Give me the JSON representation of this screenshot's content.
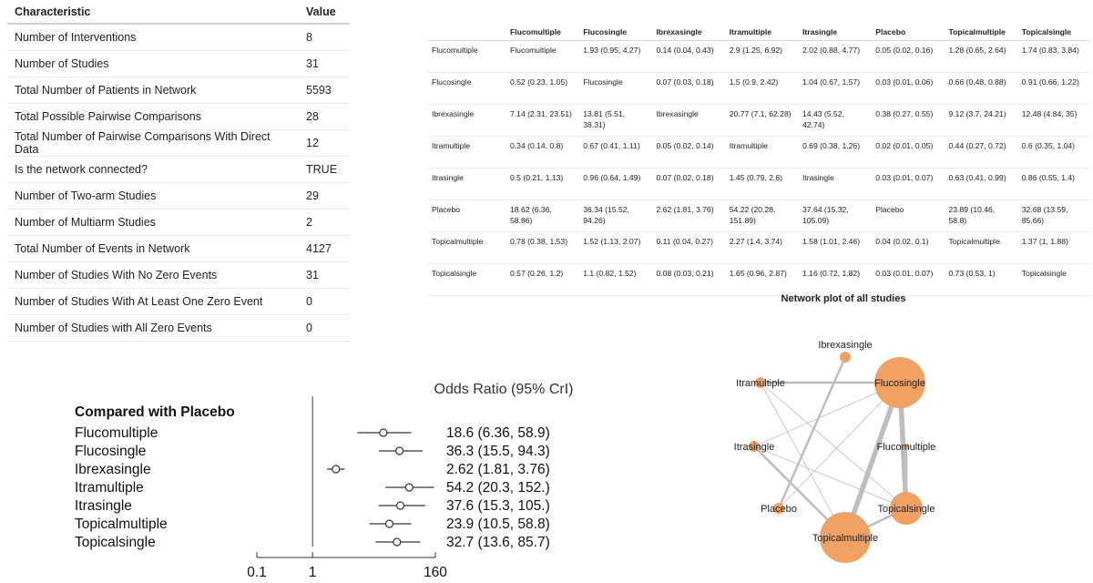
{
  "summary": {
    "headers": [
      "Characteristic",
      "Value"
    ],
    "rows": [
      [
        "Number of Interventions",
        "8"
      ],
      [
        "Number of Studies",
        "31"
      ],
      [
        "Total Number of Patients in Network",
        "5593"
      ],
      [
        "Total Possible Pairwise Comparisons",
        "28"
      ],
      [
        "Total Number of Pairwise Comparisons With Direct Data",
        "12"
      ],
      [
        "Is the network connected?",
        "TRUE"
      ],
      [
        "Number of Two-arm Studies",
        "29"
      ],
      [
        "Number of Multiarm Studies",
        "2"
      ],
      [
        "Total Number of Events in Network",
        "4127"
      ],
      [
        "Number of Studies With No Zero Events",
        "31"
      ],
      [
        "Number of Studies With At Least One Zero Event",
        "0"
      ],
      [
        "Number of Studies with All Zero Events",
        "0"
      ]
    ]
  },
  "league": {
    "headers": [
      "",
      "Flucomultiple",
      "Flucosingle",
      "Ibrexasingle",
      "Itramultiple",
      "Itrasingle",
      "Placebo",
      "Topicalmultiple",
      "Topicalsingle"
    ],
    "rows": [
      [
        "Flucomultiple",
        "Flucomultiple",
        "1.93 (0.95, 4.27)",
        "0.14 (0.04, 0.43)",
        "2.9 (1.25, 6.92)",
        "2.02 (0.88, 4.77)",
        "0.05 (0.02, 0.16)",
        "1.28 (0.65, 2.64)",
        "1.74 (0.83, 3.84)"
      ],
      [
        "Flucosingle",
        "0.52 (0.23, 1.05)",
        "Flucosingle",
        "0.07 (0.03, 0.18)",
        "1.5 (0.9, 2.42)",
        "1.04 (0.67, 1.57)",
        "0.03 (0.01, 0.06)",
        "0.66 (0.48, 0.88)",
        "0.91 (0.66, 1.22)"
      ],
      [
        "Ibrexasingle",
        "7.14 (2.31, 23.51)",
        "13.81 (5.51, 38.31)",
        "Ibrexasingle",
        "20.77 (7.1, 62.28)",
        "14.43 (5.52, 42.74)",
        "0.38 (0.27, 0.55)",
        "9.12 (3.7, 24.21)",
        "12.48 (4.84, 35)"
      ],
      [
        "Itramultiple",
        "0.34 (0.14, 0.8)",
        "0.67 (0.41, 1.11)",
        "0.05 (0.02, 0.14)",
        "Itramultiple",
        "0.69 (0.38, 1.26)",
        "0.02 (0.01, 0.05)",
        "0.44 (0.27, 0.72)",
        "0.6 (0.35, 1.04)"
      ],
      [
        "Itrasingle",
        "0.5 (0.21, 1.13)",
        "0.96 (0.64, 1.49)",
        "0.07 (0.02, 0.18)",
        "1.45 (0.79, 2.6)",
        "Itrasingle",
        "0.03 (0.01, 0.07)",
        "0.63 (0.41, 0.99)",
        "0.86 (0.55, 1.4)"
      ],
      [
        "Placebo",
        "18.62 (6.36, 58.86)",
        "36.34 (15.52, 94.26)",
        "2.62 (1.81, 3.76)",
        "54.22 (20.28, 151.89)",
        "37.64 (15.32, 105.09)",
        "Placebo",
        "23.89 (10.46, 58.8)",
        "32.68 (13.59, 85.66)"
      ],
      [
        "Topicalmultiple",
        "0.78 (0.38, 1.53)",
        "1.52 (1.13, 2.07)",
        "0.11 (0.04, 0.27)",
        "2.27 (1.4, 3.74)",
        "1.58 (1.01, 2.46)",
        "0.04 (0.02, 0.1)",
        "Topicalmultiple",
        "1.37 (1, 1.88)"
      ],
      [
        "Topicalsingle",
        "0.57 (0.26, 1.2)",
        "1.1 (0.82, 1.52)",
        "0.08 (0.03, 0.21)",
        "1.65 (0.96, 2.87)",
        "1.16 (0.72, 1.82)",
        "0.03 (0.01, 0.07)",
        "0.73 (0.53, 1)",
        "Topicalsingle"
      ]
    ]
  },
  "network": {
    "title": "Network plot of all studies",
    "node_color": "#f0a060",
    "edge_color": "#bdbdbd",
    "nodes": [
      {
        "name": "Ibrexasingle",
        "size": "small"
      },
      {
        "name": "Itramultiple",
        "size": "small"
      },
      {
        "name": "Flucosingle",
        "size": "large"
      },
      {
        "name": "Itrasingle",
        "size": "small"
      },
      {
        "name": "Flucomultiple",
        "size": "tiny"
      },
      {
        "name": "Placebo",
        "size": "small"
      },
      {
        "name": "Topicalsingle",
        "size": "medium"
      },
      {
        "name": "Topicalmultiple",
        "size": "large"
      }
    ],
    "edges": [
      {
        "from": "Ibrexasingle",
        "to": "Placebo",
        "weight": "medium"
      },
      {
        "from": "Itramultiple",
        "to": "Flucosingle",
        "weight": "medium"
      },
      {
        "from": "Itramultiple",
        "to": "Topicalmultiple",
        "weight": "thin"
      },
      {
        "from": "Itramultiple",
        "to": "Topicalsingle",
        "weight": "thin"
      },
      {
        "from": "Itrasingle",
        "to": "Flucosingle",
        "weight": "thin"
      },
      {
        "from": "Itrasingle",
        "to": "Topicalmultiple",
        "weight": "medium"
      },
      {
        "from": "Itrasingle",
        "to": "Topicalsingle",
        "weight": "thin"
      },
      {
        "from": "Flucosingle",
        "to": "Topicalmultiple",
        "weight": "thick"
      },
      {
        "from": "Flucosingle",
        "to": "Topicalsingle",
        "weight": "thick"
      },
      {
        "from": "Flucomultiple",
        "to": "Topicalsingle",
        "weight": "medium"
      },
      {
        "from": "Flucosingle",
        "to": "Placebo",
        "weight": "thin"
      },
      {
        "from": "Topicalmultiple",
        "to": "Topicalsingle",
        "weight": "medium"
      }
    ]
  },
  "chart_data": {
    "type": "scatter",
    "title": "Odds Ratio (95% CrI)",
    "group_label": "Compared with Placebo",
    "scale": "log",
    "xlim": [
      0.1,
      160
    ],
    "ticks": [
      "0.1",
      "1",
      "160"
    ],
    "tick_values": [
      0.1,
      1,
      160
    ],
    "reference_line": 1,
    "rows": [
      {
        "name": "Flucomultiple",
        "or": 18.62,
        "lo": 6.36,
        "hi": 58.86,
        "label": "18.6 (6.36, 58.9)"
      },
      {
        "name": "Flucosingle",
        "or": 36.34,
        "lo": 15.52,
        "hi": 94.26,
        "label": "36.3 (15.5, 94.3)"
      },
      {
        "name": "Ibrexasingle",
        "or": 2.62,
        "lo": 1.81,
        "hi": 3.76,
        "label": "2.62 (1.81, 3.76)"
      },
      {
        "name": "Itramultiple",
        "or": 54.22,
        "lo": 20.28,
        "hi": 151.89,
        "label": "54.2 (20.3, 152.)"
      },
      {
        "name": "Itrasingle",
        "or": 37.64,
        "lo": 15.32,
        "hi": 105.09,
        "label": "37.6 (15.3, 105.)"
      },
      {
        "name": "Topicalmultiple",
        "or": 23.89,
        "lo": 10.46,
        "hi": 58.8,
        "label": "23.9 (10.5, 58.8)"
      },
      {
        "name": "Topicalsingle",
        "or": 32.68,
        "lo": 13.59,
        "hi": 85.66,
        "label": "32.7 (13.6, 85.7)"
      }
    ]
  }
}
